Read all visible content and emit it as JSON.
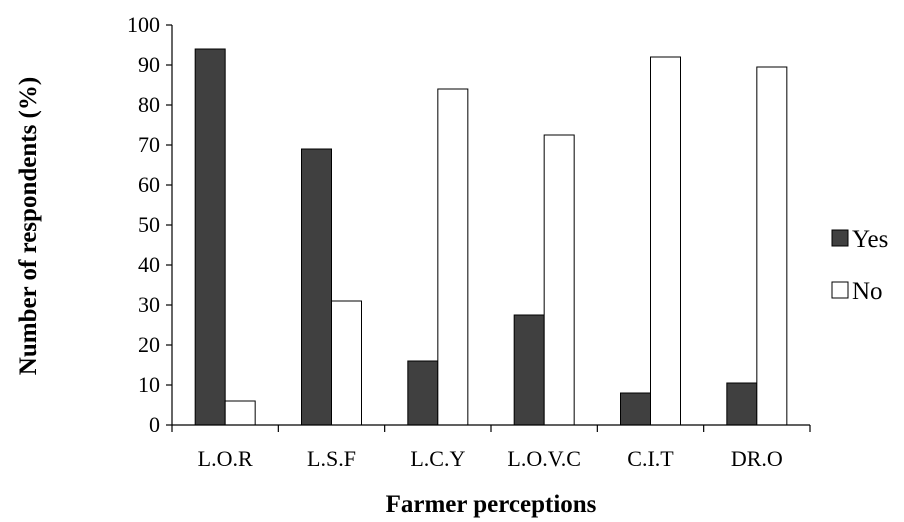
{
  "chart_data": {
    "type": "bar",
    "categories": [
      "L.O.R",
      "L.S.F",
      "L.C.Y",
      "L.O.V.C",
      "C.I.T",
      "DR.O"
    ],
    "series": [
      {
        "name": "Yes",
        "color": "#404040",
        "values": [
          94,
          69,
          16,
          27.5,
          8,
          10.5
        ]
      },
      {
        "name": "No",
        "color": "#ffffff",
        "values": [
          6,
          31,
          84,
          72.5,
          92,
          89.5
        ]
      }
    ],
    "title": "",
    "xlabel": "Farmer perceptions",
    "ylabel": "Number of respondents (%)",
    "ylim": [
      0,
      100
    ],
    "yticks": [
      0,
      10,
      20,
      30,
      40,
      50,
      60,
      70,
      80,
      90,
      100
    ],
    "grid": false,
    "legend_position": "right"
  }
}
